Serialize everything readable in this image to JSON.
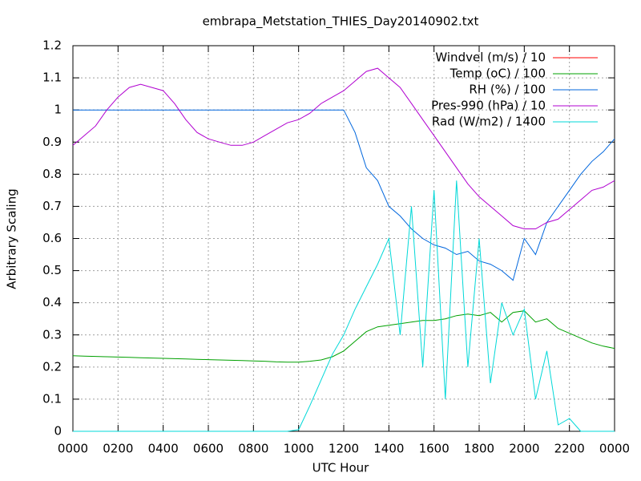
{
  "chart_data": {
    "type": "line",
    "title": "embrapa_Metstation_THIES_Day20140902.txt",
    "xlabel": "UTC Hour",
    "ylabel": "Arbitrary Scaling",
    "x": [
      0,
      0.5,
      1,
      1.5,
      2,
      2.5,
      3,
      3.5,
      4,
      4.5,
      5,
      5.5,
      6,
      6.5,
      7,
      7.5,
      8,
      8.5,
      9,
      9.5,
      10,
      10.5,
      11,
      11.5,
      12,
      12.5,
      13,
      13.5,
      14,
      14.5,
      15,
      15.5,
      16,
      16.5,
      17,
      17.5,
      18,
      18.5,
      19,
      19.5,
      20,
      20.5,
      21,
      21.5,
      22,
      22.5,
      23,
      23.5,
      24
    ],
    "series": [
      {
        "name": "Windvel (m/s) / 10",
        "color": "#ff0000",
        "values": [
          null,
          null,
          null,
          null,
          null,
          null,
          null,
          null,
          null,
          null,
          null,
          null,
          null,
          null,
          null,
          null,
          null,
          null,
          null,
          null,
          null,
          null,
          null,
          null,
          null,
          null,
          null,
          null,
          null,
          null,
          null,
          null,
          null,
          null,
          null,
          null,
          null,
          null,
          null,
          null,
          null,
          null,
          null,
          null,
          null,
          null,
          null,
          null,
          null
        ]
      },
      {
        "name": "Temp (oC) / 100",
        "color": "#00a000",
        "values": [
          0.235,
          0.234,
          0.233,
          0.232,
          0.231,
          0.23,
          0.229,
          0.228,
          0.227,
          0.226,
          0.225,
          0.224,
          0.223,
          0.222,
          0.221,
          0.22,
          0.219,
          0.218,
          0.216,
          0.215,
          0.215,
          0.218,
          0.222,
          0.232,
          0.25,
          0.28,
          0.31,
          0.325,
          0.33,
          0.335,
          0.34,
          0.345,
          0.345,
          0.35,
          0.36,
          0.365,
          0.36,
          0.37,
          0.34,
          0.37,
          0.375,
          0.34,
          0.35,
          0.32,
          0.305,
          0.29,
          0.275,
          0.265,
          0.258
        ]
      },
      {
        "name": "RH (%) / 100",
        "color": "#0066dd",
        "values": [
          1,
          1,
          1,
          1,
          1,
          1,
          1,
          1,
          1,
          1,
          1,
          1,
          1,
          1,
          1,
          1,
          1,
          1,
          1,
          1,
          1,
          1,
          1,
          1,
          1,
          0.93,
          0.82,
          0.78,
          0.7,
          0.67,
          0.63,
          0.6,
          0.58,
          0.57,
          0.55,
          0.56,
          0.53,
          0.52,
          0.5,
          0.47,
          0.6,
          0.55,
          0.65,
          0.7,
          0.75,
          0.8,
          0.84,
          0.87,
          0.91
        ]
      },
      {
        "name": "Pres-990 (hPa) / 10",
        "color": "#b000d0",
        "values": [
          0.89,
          0.92,
          0.95,
          1.0,
          1.04,
          1.07,
          1.08,
          1.07,
          1.06,
          1.02,
          0.97,
          0.93,
          0.91,
          0.9,
          0.89,
          0.89,
          0.9,
          0.92,
          0.94,
          0.96,
          0.97,
          0.99,
          1.02,
          1.04,
          1.06,
          1.09,
          1.12,
          1.13,
          1.1,
          1.07,
          1.02,
          0.97,
          0.92,
          0.87,
          0.82,
          0.77,
          0.73,
          0.7,
          0.67,
          0.64,
          0.63,
          0.63,
          0.65,
          0.66,
          0.69,
          0.72,
          0.75,
          0.76,
          0.78
        ]
      },
      {
        "name": "Rad (W/m2) / 1400",
        "color": "#00d8d8",
        "values": [
          0,
          0,
          0,
          0,
          0,
          0,
          0,
          0,
          0,
          0,
          0,
          0,
          0,
          0,
          0,
          0,
          0,
          0,
          0,
          0,
          0.005,
          0.08,
          0.16,
          0.24,
          0.3,
          0.38,
          0.45,
          0.52,
          0.6,
          0.3,
          0.7,
          0.2,
          0.75,
          0.1,
          0.78,
          0.2,
          0.6,
          0.15,
          0.4,
          0.3,
          0.38,
          0.1,
          0.25,
          0.02,
          0.04,
          0,
          0,
          0,
          0
        ]
      }
    ],
    "xlim": [
      0,
      24
    ],
    "xticks": [
      {
        "value": 0,
        "label": "0000"
      },
      {
        "value": 2,
        "label": "0200"
      },
      {
        "value": 4,
        "label": "0400"
      },
      {
        "value": 6,
        "label": "0600"
      },
      {
        "value": 8,
        "label": "0800"
      },
      {
        "value": 10,
        "label": "1000"
      },
      {
        "value": 12,
        "label": "1200"
      },
      {
        "value": 14,
        "label": "1400"
      },
      {
        "value": 16,
        "label": "1600"
      },
      {
        "value": 18,
        "label": "1800"
      },
      {
        "value": 20,
        "label": "2000"
      },
      {
        "value": 22,
        "label": "2200"
      },
      {
        "value": 24,
        "label": "0000"
      }
    ],
    "ylim": [
      0,
      1.2
    ],
    "yticks": [
      0,
      0.1,
      0.2,
      0.3,
      0.4,
      0.5,
      0.6,
      0.7,
      0.8,
      0.9,
      1,
      1.1,
      1.2
    ],
    "grid": true,
    "legend": "top-right"
  }
}
